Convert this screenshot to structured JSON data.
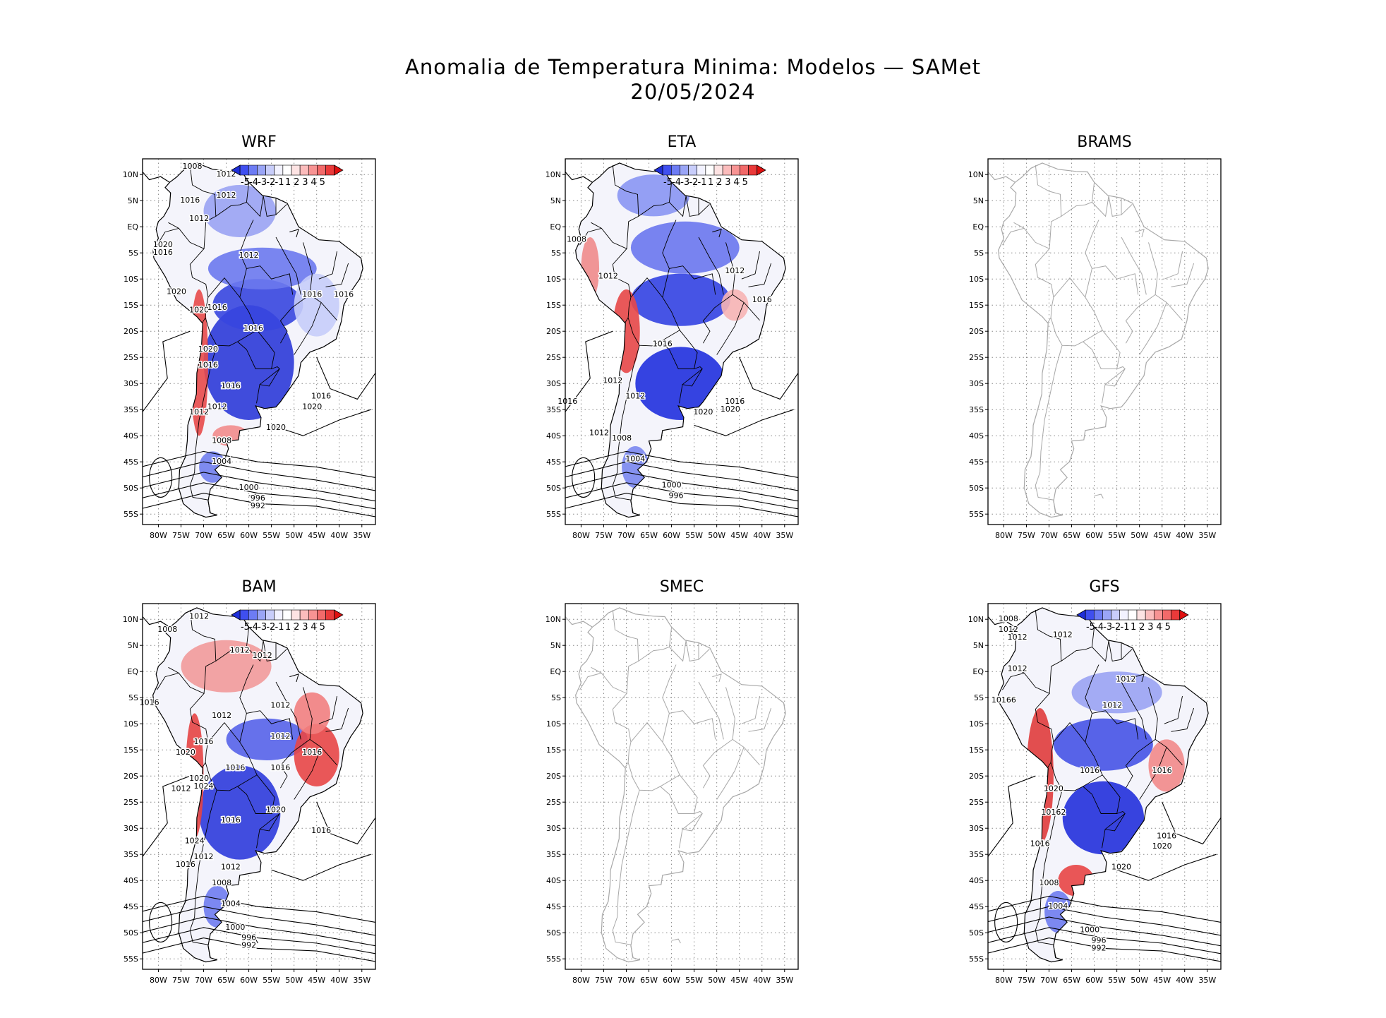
{
  "figure": {
    "title_line1": "Anomalia de Temperatura Minima: Modelos — SAMet",
    "title_line2": "20/05/2024"
  },
  "axes": {
    "lat_labels": [
      "10N",
      "5N",
      "EQ",
      "5S",
      "10S",
      "15S",
      "20S",
      "25S",
      "30S",
      "35S",
      "40S",
      "45S",
      "50S",
      "55S"
    ],
    "lat_values": [
      10,
      5,
      0,
      -5,
      -10,
      -15,
      -20,
      -25,
      -30,
      -35,
      -40,
      -45,
      -50,
      -55
    ],
    "lon_labels": [
      "80W",
      "75W",
      "70W",
      "65W",
      "60W",
      "55W",
      "50W",
      "45W",
      "40W",
      "35W"
    ],
    "lon_values": [
      -80,
      -75,
      -70,
      -65,
      -60,
      -55,
      -50,
      -45,
      -40,
      -35
    ],
    "lon_range": [
      -83.5,
      -32
    ],
    "lat_range": [
      -57,
      13
    ]
  },
  "colorbar": {
    "labels": [
      "-5",
      "-4",
      "-3",
      "-2",
      "-1",
      "1",
      "2",
      "3",
      "4",
      "5"
    ],
    "colors": [
      "#1f2fd9",
      "#3f4ff0",
      "#6d7cf4",
      "#9aa5f6",
      "#c8cdfa",
      "#f2f2ff",
      "#ffffff",
      "#fde3e3",
      "#fbbcbc",
      "#f79393",
      "#f26a6a",
      "#ea3a3a",
      "#e01010"
    ]
  },
  "panels": [
    {
      "name": "WRF",
      "has_data": true,
      "isobars": [
        {
          "text": "1008",
          "lon": -72.5,
          "lat": 11.5
        },
        {
          "text": "1012",
          "lon": -65,
          "lat": 10
        },
        {
          "text": "1012",
          "lon": -65,
          "lat": 6
        },
        {
          "text": "1016",
          "lon": -73,
          "lat": 5
        },
        {
          "text": "1012",
          "lon": -71,
          "lat": 1.5
        },
        {
          "text": "1020",
          "lon": -79,
          "lat": -3.5
        },
        {
          "text": "1016",
          "lon": -79,
          "lat": -5
        },
        {
          "text": "1012",
          "lon": -60,
          "lat": -5.5
        },
        {
          "text": "1020",
          "lon": -76,
          "lat": -12.5
        },
        {
          "text": "1020",
          "lon": -71,
          "lat": -16
        },
        {
          "text": "1016",
          "lon": -67,
          "lat": -15.5
        },
        {
          "text": "1016",
          "lon": -59,
          "lat": -19.5
        },
        {
          "text": "1016",
          "lon": -46,
          "lat": -13
        },
        {
          "text": "1016",
          "lon": -39,
          "lat": -13
        },
        {
          "text": "1020",
          "lon": -69,
          "lat": -23.5
        },
        {
          "text": "1016",
          "lon": -69,
          "lat": -26.5
        },
        {
          "text": "1016",
          "lon": -64,
          "lat": -30.5
        },
        {
          "text": "1012",
          "lon": -67,
          "lat": -34.5
        },
        {
          "text": "1012",
          "lon": -71,
          "lat": -35.5
        },
        {
          "text": "1016",
          "lon": -44,
          "lat": -32.5
        },
        {
          "text": "1020",
          "lon": -46,
          "lat": -34.5
        },
        {
          "text": "1020",
          "lon": -54,
          "lat": -38.5
        },
        {
          "text": "1008",
          "lon": -66,
          "lat": -41
        },
        {
          "text": "1004",
          "lon": -66,
          "lat": -45
        },
        {
          "text": "1000",
          "lon": -60,
          "lat": -50
        },
        {
          "text": "996",
          "lon": -58,
          "lat": -52
        },
        {
          "text": "992",
          "lon": -58,
          "lat": -53.5
        }
      ]
    },
    {
      "name": "ETA",
      "has_data": true,
      "isobars": [
        {
          "text": "1008",
          "lon": -81,
          "lat": -2.5
        },
        {
          "text": "1012",
          "lon": -46,
          "lat": -8.5
        },
        {
          "text": "1012",
          "lon": -74,
          "lat": -9.5
        },
        {
          "text": "1016",
          "lon": -40,
          "lat": -14
        },
        {
          "text": "1016",
          "lon": -62,
          "lat": -22.5
        },
        {
          "text": "1012",
          "lon": -73,
          "lat": -29.5
        },
        {
          "text": "1012",
          "lon": -68,
          "lat": -32.5
        },
        {
          "text": "1016",
          "lon": -83,
          "lat": -33.5
        },
        {
          "text": "1016",
          "lon": -46,
          "lat": -33.5
        },
        {
          "text": "1020",
          "lon": -53,
          "lat": -35.5
        },
        {
          "text": "1020",
          "lon": -47,
          "lat": -35
        },
        {
          "text": "1012",
          "lon": -76,
          "lat": -39.5
        },
        {
          "text": "1008",
          "lon": -71,
          "lat": -40.5
        },
        {
          "text": "1004",
          "lon": -68,
          "lat": -44.5
        },
        {
          "text": "1000",
          "lon": -60,
          "lat": -49.5
        },
        {
          "text": "996",
          "lon": -59,
          "lat": -51.5
        }
      ]
    },
    {
      "name": "BRAMS",
      "has_data": false,
      "isobars": []
    },
    {
      "name": "BAM",
      "has_data": true,
      "isobars": [
        {
          "text": "1012",
          "lon": -71,
          "lat": 10.5
        },
        {
          "text": "1008",
          "lon": -78,
          "lat": 8
        },
        {
          "text": "1012",
          "lon": -62,
          "lat": 4
        },
        {
          "text": "1012",
          "lon": -57,
          "lat": 3
        },
        {
          "text": "1016",
          "lon": -82,
          "lat": -6
        },
        {
          "text": "1012",
          "lon": -53,
          "lat": -6.5
        },
        {
          "text": "1012",
          "lon": -66,
          "lat": -8.5
        },
        {
          "text": "1012",
          "lon": -53,
          "lat": -12.5
        },
        {
          "text": "1016",
          "lon": -70,
          "lat": -13.5
        },
        {
          "text": "1020",
          "lon": -74,
          "lat": -15.5
        },
        {
          "text": "1016",
          "lon": -46,
          "lat": -15.5
        },
        {
          "text": "1016",
          "lon": -63,
          "lat": -18.5
        },
        {
          "text": "1016",
          "lon": -53,
          "lat": -18.5
        },
        {
          "text": "1020",
          "lon": -71,
          "lat": -20.5
        },
        {
          "text": "1024",
          "lon": -70,
          "lat": -22
        },
        {
          "text": "1012",
          "lon": -75,
          "lat": -22.5
        },
        {
          "text": "1020",
          "lon": -54,
          "lat": -26.5
        },
        {
          "text": "1016",
          "lon": -64,
          "lat": -28.5
        },
        {
          "text": "1016",
          "lon": -44,
          "lat": -30.5
        },
        {
          "text": "1024",
          "lon": -72,
          "lat": -32.5
        },
        {
          "text": "1012",
          "lon": -70,
          "lat": -35.5
        },
        {
          "text": "1016",
          "lon": -74,
          "lat": -37
        },
        {
          "text": "1012",
          "lon": -64,
          "lat": -37.5
        },
        {
          "text": "1008",
          "lon": -66,
          "lat": -40.5
        },
        {
          "text": "1004",
          "lon": -64,
          "lat": -44.5
        },
        {
          "text": "1000",
          "lon": -63,
          "lat": -49
        },
        {
          "text": "996",
          "lon": -60,
          "lat": -51
        },
        {
          "text": "992",
          "lon": -60,
          "lat": -52.5
        }
      ]
    },
    {
      "name": "SMEC",
      "has_data": false,
      "isobars": []
    },
    {
      "name": "GFS",
      "has_data": true,
      "isobars": [
        {
          "text": "1008",
          "lon": -79,
          "lat": 10
        },
        {
          "text": "1012",
          "lon": -79,
          "lat": 8
        },
        {
          "text": "1012",
          "lon": -77,
          "lat": 6.5
        },
        {
          "text": "1012",
          "lon": -67,
          "lat": 7
        },
        {
          "text": "1012",
          "lon": -77,
          "lat": 0.5
        },
        {
          "text": "1012",
          "lon": -53,
          "lat": -1.5
        },
        {
          "text": "10166",
          "lon": -80,
          "lat": -5.5
        },
        {
          "text": "1012",
          "lon": -56,
          "lat": -6.5
        },
        {
          "text": "1016",
          "lon": -61,
          "lat": -19
        },
        {
          "text": "1016",
          "lon": -45,
          "lat": -19
        },
        {
          "text": "1020",
          "lon": -69,
          "lat": -22.5
        },
        {
          "text": "10162",
          "lon": -69,
          "lat": -27
        },
        {
          "text": "1016",
          "lon": -44,
          "lat": -31.5
        },
        {
          "text": "1020",
          "lon": -45,
          "lat": -33.5
        },
        {
          "text": "1016",
          "lon": -72,
          "lat": -33
        },
        {
          "text": "1020",
          "lon": -54,
          "lat": -37.5
        },
        {
          "text": "1008",
          "lon": -70,
          "lat": -40.5
        },
        {
          "text": "1004",
          "lon": -68,
          "lat": -45
        },
        {
          "text": "1000",
          "lon": -61,
          "lat": -49.5
        },
        {
          "text": "996",
          "lon": -59,
          "lat": -51.5
        },
        {
          "text": "992",
          "lon": -59,
          "lat": -53
        }
      ]
    }
  ]
}
